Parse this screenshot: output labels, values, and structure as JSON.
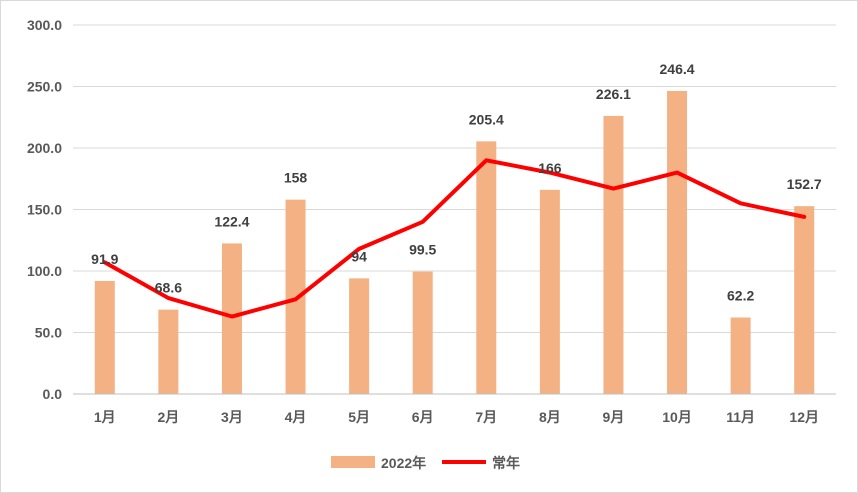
{
  "chart_data": {
    "type": "bar",
    "categories": [
      "1月",
      "2月",
      "3月",
      "4月",
      "5月",
      "6月",
      "7月",
      "8月",
      "9月",
      "10月",
      "11月",
      "12月"
    ],
    "series": [
      {
        "name": "2022年",
        "type": "bar",
        "color": "#f4b183",
        "values": [
          91.9,
          68.6,
          122.4,
          158,
          94,
          99.5,
          205.4,
          166,
          226.1,
          246.4,
          62.2,
          152.7
        ],
        "data_labels": [
          "91.9",
          "68.6",
          "122.4",
          "158",
          "94",
          "99.5",
          "205.4",
          "166",
          "226.1",
          "246.4",
          "62.2",
          "152.7"
        ]
      },
      {
        "name": "常年",
        "type": "line",
        "color": "#ff0000",
        "values": [
          107,
          78,
          63,
          77,
          118,
          140,
          190,
          180,
          167,
          180,
          155,
          144
        ]
      }
    ],
    "y_ticks": [
      "0.0",
      "50.0",
      "100.0",
      "150.0",
      "200.0",
      "250.0",
      "300.0"
    ],
    "ylim": [
      0,
      300
    ],
    "grid": true,
    "legend_position": "bottom"
  }
}
